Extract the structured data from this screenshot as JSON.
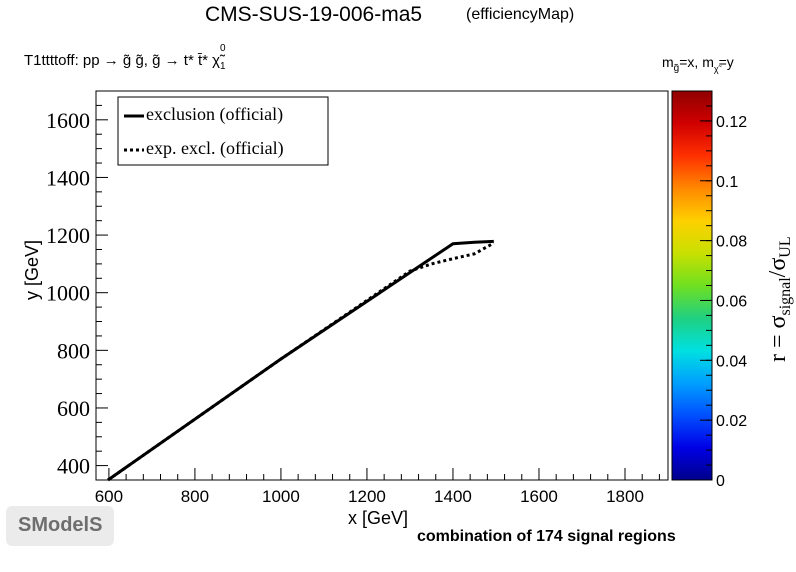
{
  "header": {
    "title": "CMS-SUS-19-006-ma5",
    "subtitle": "(efficiencyMap)",
    "process": "T1ttttoff: pp  → g̃ g̃, g̃  → t* t̄* χ̃",
    "process_sup": "0",
    "process_sub": "1",
    "mass_label": "m",
    "mass_sub_gluino": "g̃",
    "mass_eq_x": "=x, m",
    "mass_sub_chi": "χ̃",
    "mass_sub_chi_sup": "0",
    "mass_sub_chi_sub": "1",
    "mass_eq_y": "=y"
  },
  "footer": {
    "regions_label": "combination of 174 signal regions",
    "logo_text": "SModelS"
  },
  "colors": {
    "exclusion": "#000000",
    "frame": "#000000",
    "palette": [
      "#00008b",
      "#0000e6",
      "#0050ff",
      "#00a0ff",
      "#00e0e0",
      "#20d080",
      "#70e020",
      "#c8e000",
      "#ffd000",
      "#ff8800",
      "#ff3000",
      "#d00000",
      "#900000"
    ]
  },
  "chart_data": {
    "type": "line",
    "xlabel": "x [GeV]",
    "ylabel": "y [GeV]",
    "xlim": [
      570,
      1900
    ],
    "ylim": [
      350,
      1700
    ],
    "x_ticks": [
      600,
      800,
      1000,
      1200,
      1400,
      1600,
      1800
    ],
    "y_ticks": [
      400,
      600,
      800,
      1000,
      1200,
      1400,
      1600
    ],
    "legend": {
      "placement": "top-left",
      "entries": [
        "exclusion (official)",
        "exp. excl. (official)"
      ]
    },
    "series": [
      {
        "name": "exclusion (official)",
        "style": "solid",
        "x": [
          598,
          1000,
          1400,
          1450,
          1495
        ],
        "y": [
          350,
          770,
          1170,
          1175,
          1178
        ]
      },
      {
        "name": "exp. excl. (official)",
        "style": "dotted",
        "x": [
          598,
          1000,
          1300,
          1350,
          1400,
          1450,
          1480,
          1495
        ],
        "y": [
          350,
          770,
          1075,
          1100,
          1118,
          1135,
          1160,
          1172
        ]
      }
    ],
    "colorbar": {
      "label": "r = σ_signal/σ_UL",
      "label_main": "r = σ",
      "label_sub1": "signal",
      "label_div": "/σ",
      "label_sub2": "UL",
      "range": [
        0,
        0.13
      ],
      "ticks": [
        "0",
        "0.02",
        "0.04",
        "0.06",
        "0.08",
        "0.1",
        "0.12"
      ],
      "tick_values": [
        0,
        0.02,
        0.04,
        0.06,
        0.08,
        0.1,
        0.12
      ]
    }
  }
}
